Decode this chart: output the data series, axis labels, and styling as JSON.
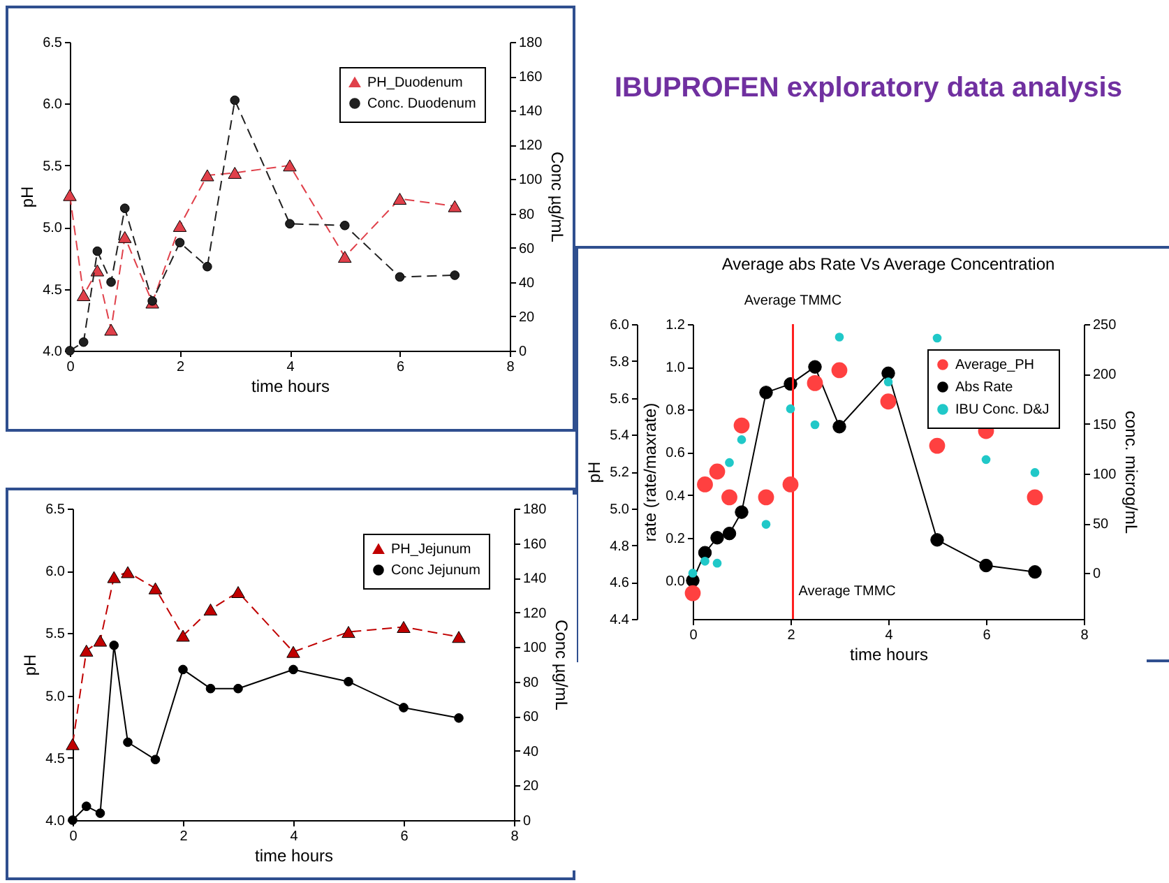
{
  "chart_data": [
    {
      "type": "line",
      "xlabel": "time hours",
      "ylabel": "pH",
      "y2label": "Conc µg/mL",
      "x": [
        0,
        0.25,
        0.5,
        0.75,
        1,
        1.5,
        2,
        2.5,
        3,
        4,
        5,
        6,
        7
      ],
      "xlim": [
        0,
        8
      ],
      "xticks": [
        0,
        2,
        4,
        6,
        8
      ],
      "ylim": [
        4.0,
        6.5
      ],
      "yticks": [
        {
          "value": 4,
          "label": "4.0"
        },
        {
          "value": 4.5,
          "label": "4.5"
        },
        {
          "value": 5,
          "label": "5.0"
        },
        {
          "value": 5.5,
          "label": "5.5"
        },
        {
          "value": 6,
          "label": "6.0"
        },
        {
          "value": 6.5,
          "label": "6.5"
        }
      ],
      "y2lim": [
        0,
        180
      ],
      "y2ticks": [
        0,
        20,
        40,
        60,
        80,
        100,
        120,
        140,
        160,
        180
      ],
      "legend": "top right",
      "line_style": "dashed",
      "series": [
        {
          "name": "PH_Duodenum",
          "color": "#e0404a",
          "marker": "triangle",
          "values": [
            5.26,
            4.45,
            4.65,
            4.17,
            4.92,
            4.39,
            5.01,
            5.42,
            5.44,
            5.5,
            4.76,
            5.23,
            5.17
          ]
        },
        {
          "name": "Conc. Duodenum",
          "color": "#202020",
          "marker": "circle",
          "axis": "y2",
          "values": [
            0,
            5,
            58,
            40,
            83,
            29,
            63,
            49,
            146,
            74,
            73,
            43,
            44
          ]
        }
      ]
    },
    {
      "type": "other",
      "title": "IBUPROFEN exploratory data analysis"
    },
    {
      "type": "line",
      "title": "Average abs Rate Vs Average Concentration",
      "xlabel": "time hours",
      "ylabel": "rate (rate/maxrate)",
      "y2label": "conc. microg/mL",
      "y3label": "pH",
      "x": [
        0,
        0.25,
        0.5,
        0.75,
        1,
        1.5,
        2,
        2.5,
        3,
        4,
        5,
        6,
        7
      ],
      "xlim": [
        0,
        8
      ],
      "xticks": [
        0,
        2,
        4,
        6,
        8
      ],
      "ylim": [
        -0.18,
        1.2
      ],
      "yticks": [
        {
          "value": 0,
          "label": "0.0"
        },
        {
          "value": 0.2,
          "label": "0.2"
        },
        {
          "value": 0.4,
          "label": "0.4"
        },
        {
          "value": 0.6,
          "label": "0.6"
        },
        {
          "value": 0.8,
          "label": "0.8"
        },
        {
          "value": 1,
          "label": "1.0"
        },
        {
          "value": 1.2,
          "label": "1.2"
        }
      ],
      "y2lim": [
        -46,
        250
      ],
      "y2ticks": [
        0,
        50,
        100,
        150,
        200,
        250
      ],
      "y3lim": [
        4.4,
        6.0
      ],
      "y3ticks": [
        {
          "value": 4.4,
          "label": "4.4"
        },
        {
          "value": 4.6,
          "label": "4.6"
        },
        {
          "value": 4.8,
          "label": "4.8"
        },
        {
          "value": 5,
          "label": "5.0"
        },
        {
          "value": 5.2,
          "label": "5.2"
        },
        {
          "value": 5.4,
          "label": "5.4"
        },
        {
          "value": 5.6,
          "label": "5.6"
        },
        {
          "value": 5.8,
          "label": "5.8"
        },
        {
          "value": 6,
          "label": "6.0"
        }
      ],
      "legend": "top right",
      "ref_lines": [
        {
          "axis": "x",
          "value": 2.05,
          "label": "Average TMMC",
          "color": "#ff2020"
        }
      ],
      "annotations": [
        "Average TMMC"
      ],
      "series": [
        {
          "name": "Average_PH",
          "type": "scatter",
          "color": "#ff4040",
          "marker": "circle",
          "axis": "y3",
          "values": [
            4.54,
            5.13,
            5.2,
            5.06,
            5.45,
            5.06,
            5.13,
            5.68,
            5.75,
            5.58,
            5.34,
            5.42,
            5.06
          ]
        },
        {
          "name": "Abs Rate",
          "type": "line",
          "color": "#000000",
          "marker": "circle",
          "line_style": "solid",
          "values": [
            0.0,
            0.13,
            0.2,
            0.22,
            0.32,
            0.88,
            0.92,
            1.0,
            0.72,
            0.97,
            0.19,
            0.07,
            0.04
          ]
        },
        {
          "name": "IBU Conc. D&J",
          "type": "scatter",
          "color": "#20c8c8",
          "marker": "circle",
          "axis": "y2",
          "values": [
            0,
            12,
            10,
            111,
            134,
            49,
            165,
            149,
            237,
            192,
            236,
            114,
            101
          ]
        }
      ]
    },
    {
      "type": "line",
      "xlabel": "time hours",
      "ylabel": "pH",
      "y2label": "Conc µg/mL",
      "x": [
        0,
        0.25,
        0.5,
        0.75,
        1,
        1.5,
        2,
        2.5,
        3,
        4,
        5,
        6,
        7
      ],
      "xlim": [
        0,
        8
      ],
      "xticks": [
        0,
        2,
        4,
        6,
        8
      ],
      "ylim": [
        4.0,
        6.5
      ],
      "yticks": [
        {
          "value": 4,
          "label": "4.0"
        },
        {
          "value": 4.5,
          "label": "4.5"
        },
        {
          "value": 5,
          "label": "5.0"
        },
        {
          "value": 5.5,
          "label": "5.5"
        },
        {
          "value": 6,
          "label": "6.0"
        },
        {
          "value": 6.5,
          "label": "6.5"
        }
      ],
      "y2lim": [
        0,
        180
      ],
      "y2ticks": [
        0,
        20,
        40,
        60,
        80,
        100,
        120,
        140,
        160,
        180
      ],
      "legend": "top right",
      "series": [
        {
          "name": "PH_Jejunum",
          "color": "#c00000",
          "marker": "triangle",
          "line_style": "dashed",
          "values": [
            4.61,
            5.36,
            5.44,
            5.95,
            5.99,
            5.86,
            5.48,
            5.69,
            5.83,
            5.35,
            5.51,
            5.55,
            5.47
          ]
        },
        {
          "name": "Conc Jejunum",
          "color": "#000000",
          "marker": "circle",
          "line_style": "solid",
          "axis": "y2",
          "values": [
            0,
            8,
            4,
            101,
            45,
            35,
            87,
            76,
            76,
            87,
            80,
            65,
            59
          ]
        }
      ]
    }
  ]
}
